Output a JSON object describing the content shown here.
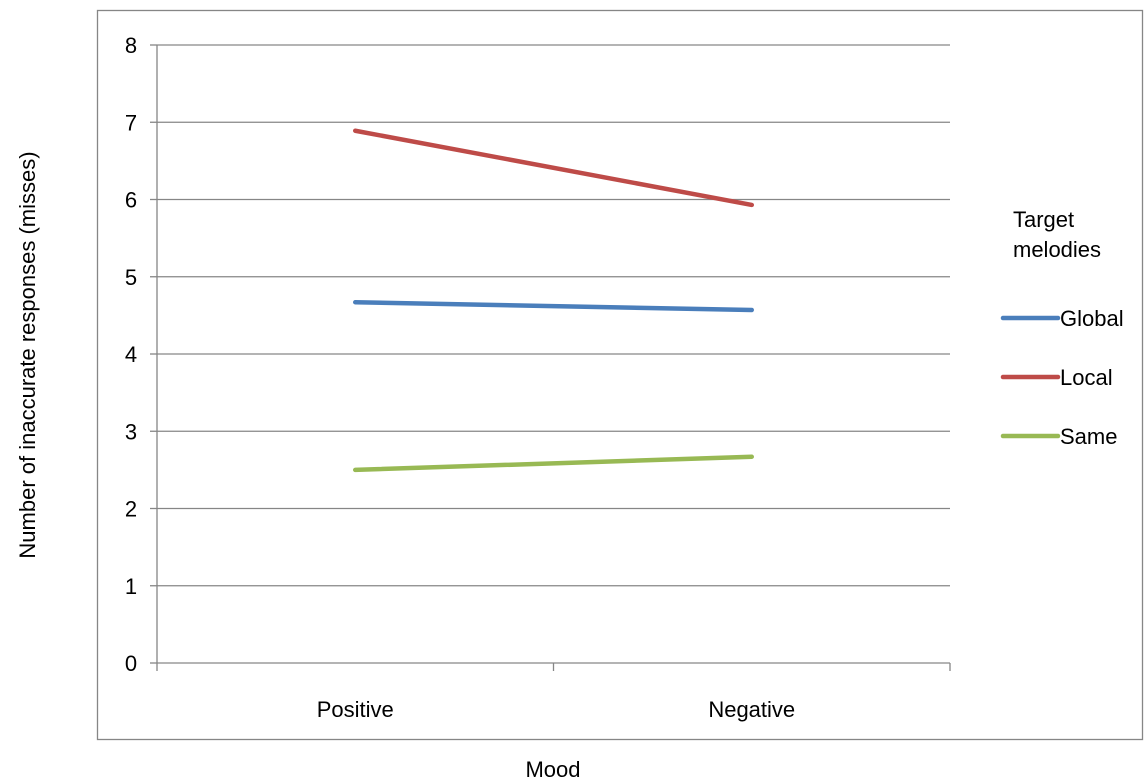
{
  "chart_data": {
    "type": "line",
    "title": "",
    "xlabel": "Mood",
    "ylabel": "Number of inaccurate responses (misses)",
    "categories": [
      "Positive",
      "Negative"
    ],
    "ylim": [
      0,
      8
    ],
    "yticks": [
      "0",
      "1",
      "2",
      "3",
      "4",
      "5",
      "6",
      "7",
      "8"
    ],
    "grid": true,
    "legend": {
      "title": "Target melodies",
      "title_lines": [
        "Target",
        "melodies"
      ],
      "placement": "right"
    },
    "series": [
      {
        "name": "Global",
        "values": [
          4.67,
          4.57
        ],
        "color": "#4a7ebb"
      },
      {
        "name": "Local",
        "values": [
          6.89,
          5.93
        ],
        "color": "#be4b48"
      },
      {
        "name": "Same",
        "values": [
          2.5,
          2.67
        ],
        "color": "#98b954"
      }
    ]
  }
}
